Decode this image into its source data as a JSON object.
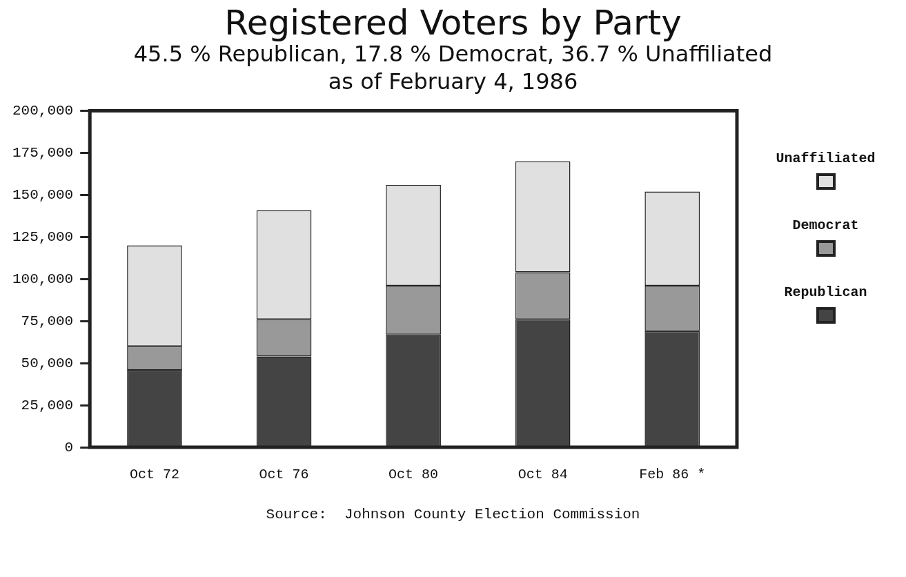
{
  "chart_data": {
    "type": "bar",
    "stacked": true,
    "title": "Registered Voters by Party",
    "subtitle": "45.5 % Republican, 17.8 % Democrat, 36.7 % Unaffiliated as of February 4, 1986",
    "categories": [
      "Oct 72",
      "Oct 76",
      "Oct 80",
      "Oct 84",
      "Feb 86 *"
    ],
    "series": [
      {
        "name": "Republican",
        "color": "#444444",
        "values": [
          46000,
          54000,
          67000,
          76000,
          69000
        ]
      },
      {
        "name": "Democrat",
        "color": "#999999",
        "values": [
          14000,
          22000,
          29000,
          28000,
          27000
        ]
      },
      {
        "name": "Unaffiliated",
        "color": "#e0e0e0",
        "values": [
          60000,
          65000,
          60000,
          66000,
          56000
        ]
      }
    ],
    "ylim": [
      0,
      200000
    ],
    "yticks": [
      {
        "value": 0,
        "label": "0"
      },
      {
        "value": 25000,
        "label": "25,000"
      },
      {
        "value": 50000,
        "label": "50,000"
      },
      {
        "value": 75000,
        "label": "75,000"
      },
      {
        "value": 100000,
        "label": "100,000"
      },
      {
        "value": 125000,
        "label": "125,000"
      },
      {
        "value": 150000,
        "label": "150,000"
      },
      {
        "value": 175000,
        "label": "175,000"
      },
      {
        "value": 200000,
        "label": "200,000"
      }
    ],
    "grid": false,
    "legend": "right",
    "annotations": [
      "Source:  Johnson County Election Commission"
    ]
  }
}
